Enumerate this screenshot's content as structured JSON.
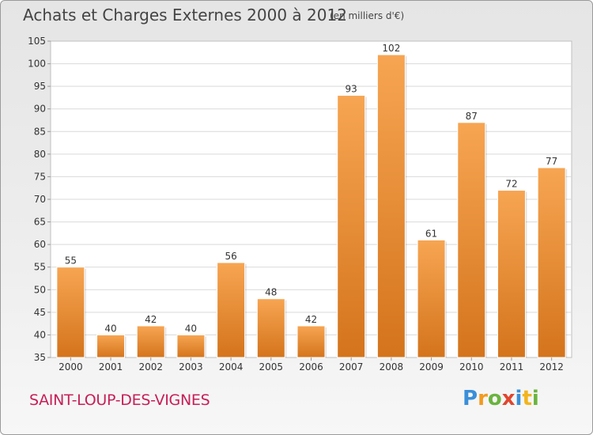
{
  "header": {
    "title": "Achats et Charges Externes 2000 à 2012",
    "subtitle": "(en milliers d'€)"
  },
  "footer": {
    "commune": "SAINT-LOUP-DES-VIGNES",
    "logo_text": "Proxiti"
  },
  "colors": {
    "bar_top": "#f7a552",
    "bar_bottom": "#d4741c",
    "commune": "#c71f58"
  },
  "chart_data": {
    "type": "bar",
    "title": "Achats et Charges Externes 2000 à 2012",
    "subtitle": "(en milliers d'€)",
    "categories": [
      "2000",
      "2001",
      "2002",
      "2003",
      "2004",
      "2005",
      "2006",
      "2007",
      "2008",
      "2009",
      "2010",
      "2011",
      "2012"
    ],
    "values": [
      55,
      40,
      42,
      40,
      56,
      48,
      42,
      93,
      102,
      61,
      87,
      72,
      77
    ],
    "data_labels": [
      "55",
      "40",
      "42",
      "40",
      "56",
      "48",
      "42",
      "93",
      "102",
      "61",
      "87",
      "72",
      "77"
    ],
    "ylim": [
      35,
      105
    ],
    "yticks": [
      35,
      40,
      45,
      50,
      55,
      60,
      65,
      70,
      75,
      80,
      85,
      90,
      95,
      100,
      105
    ],
    "grid": true,
    "xlabel": "",
    "ylabel": ""
  }
}
